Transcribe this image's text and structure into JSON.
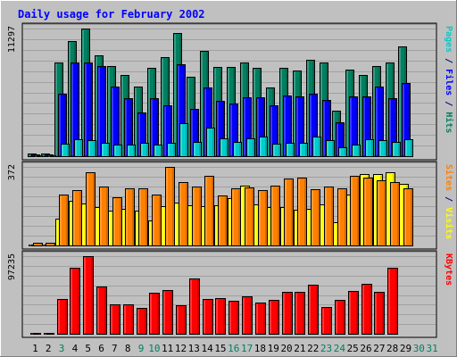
{
  "chart_data": {
    "type": "bar",
    "title": "Daily usage for February 2002",
    "categories": [
      "1",
      "2",
      "3",
      "4",
      "5",
      "6",
      "7",
      "8",
      "9",
      "10",
      "11",
      "12",
      "13",
      "14",
      "15",
      "16",
      "17",
      "18",
      "19",
      "20",
      "21",
      "22",
      "23",
      "24",
      "25",
      "26",
      "27",
      "28",
      "29",
      "30",
      "31"
    ],
    "weekend_days": [
      3,
      9,
      10,
      16,
      17,
      23,
      24,
      30,
      31
    ],
    "panels": [
      {
        "id": "hits",
        "ymax_label": "11297",
        "ymax": 11297,
        "right_labels": [
          {
            "text": "Pages",
            "color": "#00cccc"
          },
          {
            "text": " / ",
            "color": "#000080"
          },
          {
            "text": "Files",
            "color": "#0000ff"
          },
          {
            "text": " / ",
            "color": "#000080"
          },
          {
            "text": "Hits",
            "color": "#008060"
          }
        ],
        "series": [
          {
            "name": "Hits",
            "color": "#008060",
            "values": [
              200,
              200,
              8300,
              10200,
              11297,
              8900,
              8000,
              7200,
              6200,
              7800,
              8800,
              10900,
              7000,
              9300,
              7900,
              7900,
              8300,
              7800,
              6100,
              7800,
              7600,
              8500,
              8300,
              4000,
              7700,
              7200,
              8000,
              8300,
              9700,
              0,
              0
            ]
          },
          {
            "name": "Files",
            "color": "#0000ff",
            "values": [
              150,
              150,
              5500,
              8300,
              8300,
              8000,
              6200,
              5100,
              3900,
              5100,
              4500,
              8100,
              4200,
              6100,
              4900,
              4700,
              5200,
              5200,
              4500,
              5400,
              5300,
              5500,
              5000,
              3000,
              5300,
              5300,
              6200,
              5100,
              6500,
              0,
              0
            ]
          },
          {
            "name": "Pages",
            "color": "#00cccc",
            "values": [
              60,
              60,
              1100,
              1500,
              1400,
              1200,
              1000,
              1000,
              1200,
              1000,
              1200,
              2900,
              1300,
              2500,
              1600,
              1300,
              1600,
              1700,
              1100,
              1200,
              1200,
              1700,
              1400,
              800,
              1000,
              1500,
              1400,
              1300,
              1500,
              0,
              0
            ]
          }
        ]
      },
      {
        "id": "visits",
        "ymax_label": "372",
        "ymax": 372,
        "right_labels": [
          {
            "text": "Sites",
            "color": "#ff8000"
          },
          {
            "text": " / ",
            "color": "#000080"
          },
          {
            "text": "Visits",
            "color": "#ffff00"
          }
        ],
        "series": [
          {
            "name": "Visits",
            "color": "#ffff00",
            "values": [
              5,
              5,
              125,
              210,
              200,
              180,
              165,
              175,
              165,
              120,
              185,
              205,
              190,
              185,
              190,
              225,
              285,
              195,
              180,
              180,
              170,
              175,
              195,
              110,
              240,
              340,
              340,
              345,
              290,
              0,
              0
            ]
          },
          {
            "name": "Sites",
            "color": "#ff8000",
            "values": [
              12,
              12,
              240,
              260,
              345,
              280,
              230,
              270,
              270,
              240,
              370,
              300,
              280,
              330,
              235,
              270,
              275,
              260,
              285,
              315,
              320,
              265,
              280,
              270,
              330,
              320,
              310,
              300,
              270,
              0,
              0
            ]
          }
        ]
      },
      {
        "id": "kbytes",
        "ymax_label": "97235",
        "ymax": 97235,
        "right_labels": [
          {
            "text": "KBytes",
            "color": "#ff0000"
          }
        ],
        "series": [
          {
            "name": "KBytes",
            "color": "#ff0000",
            "values": [
              1000,
              1000,
              44000,
              83000,
              97235,
              59000,
              37000,
              37000,
              32000,
              51000,
              55000,
              36000,
              69000,
              44000,
              45000,
              41000,
              47000,
              39000,
              43000,
              52000,
              52000,
              61000,
              33000,
              43000,
              54000,
              63000,
              53000,
              83000,
              0,
              0,
              0
            ]
          }
        ]
      }
    ]
  }
}
